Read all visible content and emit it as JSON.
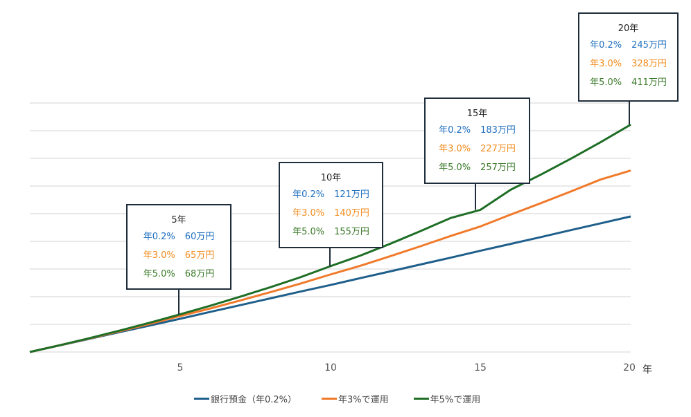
{
  "chart_data": {
    "type": "line",
    "title": "",
    "xlabel": "年",
    "ylabel": "",
    "x": [
      0,
      1,
      2,
      3,
      4,
      5,
      6,
      7,
      8,
      9,
      10,
      11,
      12,
      13,
      14,
      15,
      16,
      17,
      18,
      19,
      20
    ],
    "xlim": [
      0,
      20
    ],
    "ylim": [
      0,
      450
    ],
    "x_ticks": [
      "5",
      "10",
      "15",
      "20"
    ],
    "y_ticks_visible": false,
    "grid": true,
    "legend_position": "bottom",
    "series": [
      {
        "name": "銀行預金（年0.2%）",
        "color": "#1f5f8b",
        "values": [
          0,
          12,
          24,
          36,
          48,
          60,
          72.4,
          84.6,
          96.9,
          109.1,
          121,
          133.5,
          145.8,
          158.1,
          170.4,
          183,
          195.3,
          207.6,
          220.2,
          232.6,
          245
        ]
      },
      {
        "name": "年3%で運用",
        "color": "#f07a2b",
        "values": [
          0,
          12.2,
          24.7,
          37.6,
          50.9,
          65,
          78.6,
          93.1,
          108.1,
          123.5,
          140,
          155.8,
          173.2,
          191.1,
          209.6,
          227,
          248.3,
          268.8,
          290,
          311.8,
          328
        ]
      },
      {
        "name": "年5%で運用",
        "color": "#1e6e26",
        "values": [
          0,
          12.3,
          25.2,
          38.8,
          53,
          68,
          83.5,
          99.9,
          117,
          135,
          155,
          174.2,
          195.7,
          218.4,
          242.1,
          257,
          293.1,
          320.4,
          349.1,
          379.3,
          411
        ]
      }
    ],
    "annotations": [
      {
        "year": "5年",
        "rows": [
          [
            "年0.2%",
            "60万円"
          ],
          [
            "年3.0%",
            "65万円"
          ],
          [
            "年5.0%",
            "68万円"
          ]
        ]
      },
      {
        "year": "10年",
        "rows": [
          [
            "年0.2%",
            "121万円"
          ],
          [
            "年3.0%",
            "140万円"
          ],
          [
            "年5.0%",
            "155万円"
          ]
        ]
      },
      {
        "year": "15年",
        "rows": [
          [
            "年0.2%",
            "183万円"
          ],
          [
            "年3.0%",
            "227万円"
          ],
          [
            "年5.0%",
            "257万円"
          ]
        ]
      },
      {
        "year": "20年",
        "rows": [
          [
            "年0.2%",
            "245万円"
          ],
          [
            "年3.0%",
            "328万円"
          ],
          [
            "年5.0%",
            "411万円"
          ]
        ]
      }
    ]
  },
  "axis": {
    "ticks": [
      "5",
      "10",
      "15",
      "20"
    ],
    "unit": "年"
  },
  "legend": [
    {
      "label": "銀行預金（年0.2%）",
      "color": "#1f5f8b"
    },
    {
      "label": "年3%で運用",
      "color": "#f07a2b"
    },
    {
      "label": "年5%で運用",
      "color": "#1e6e26"
    }
  ],
  "colors": {
    "text_blue": "#1f6fbf",
    "text_orange": "#f28c1e",
    "text_green": "#3b7a2a",
    "grid": "#e2e2e2",
    "box_border": "#1f2d3a"
  }
}
